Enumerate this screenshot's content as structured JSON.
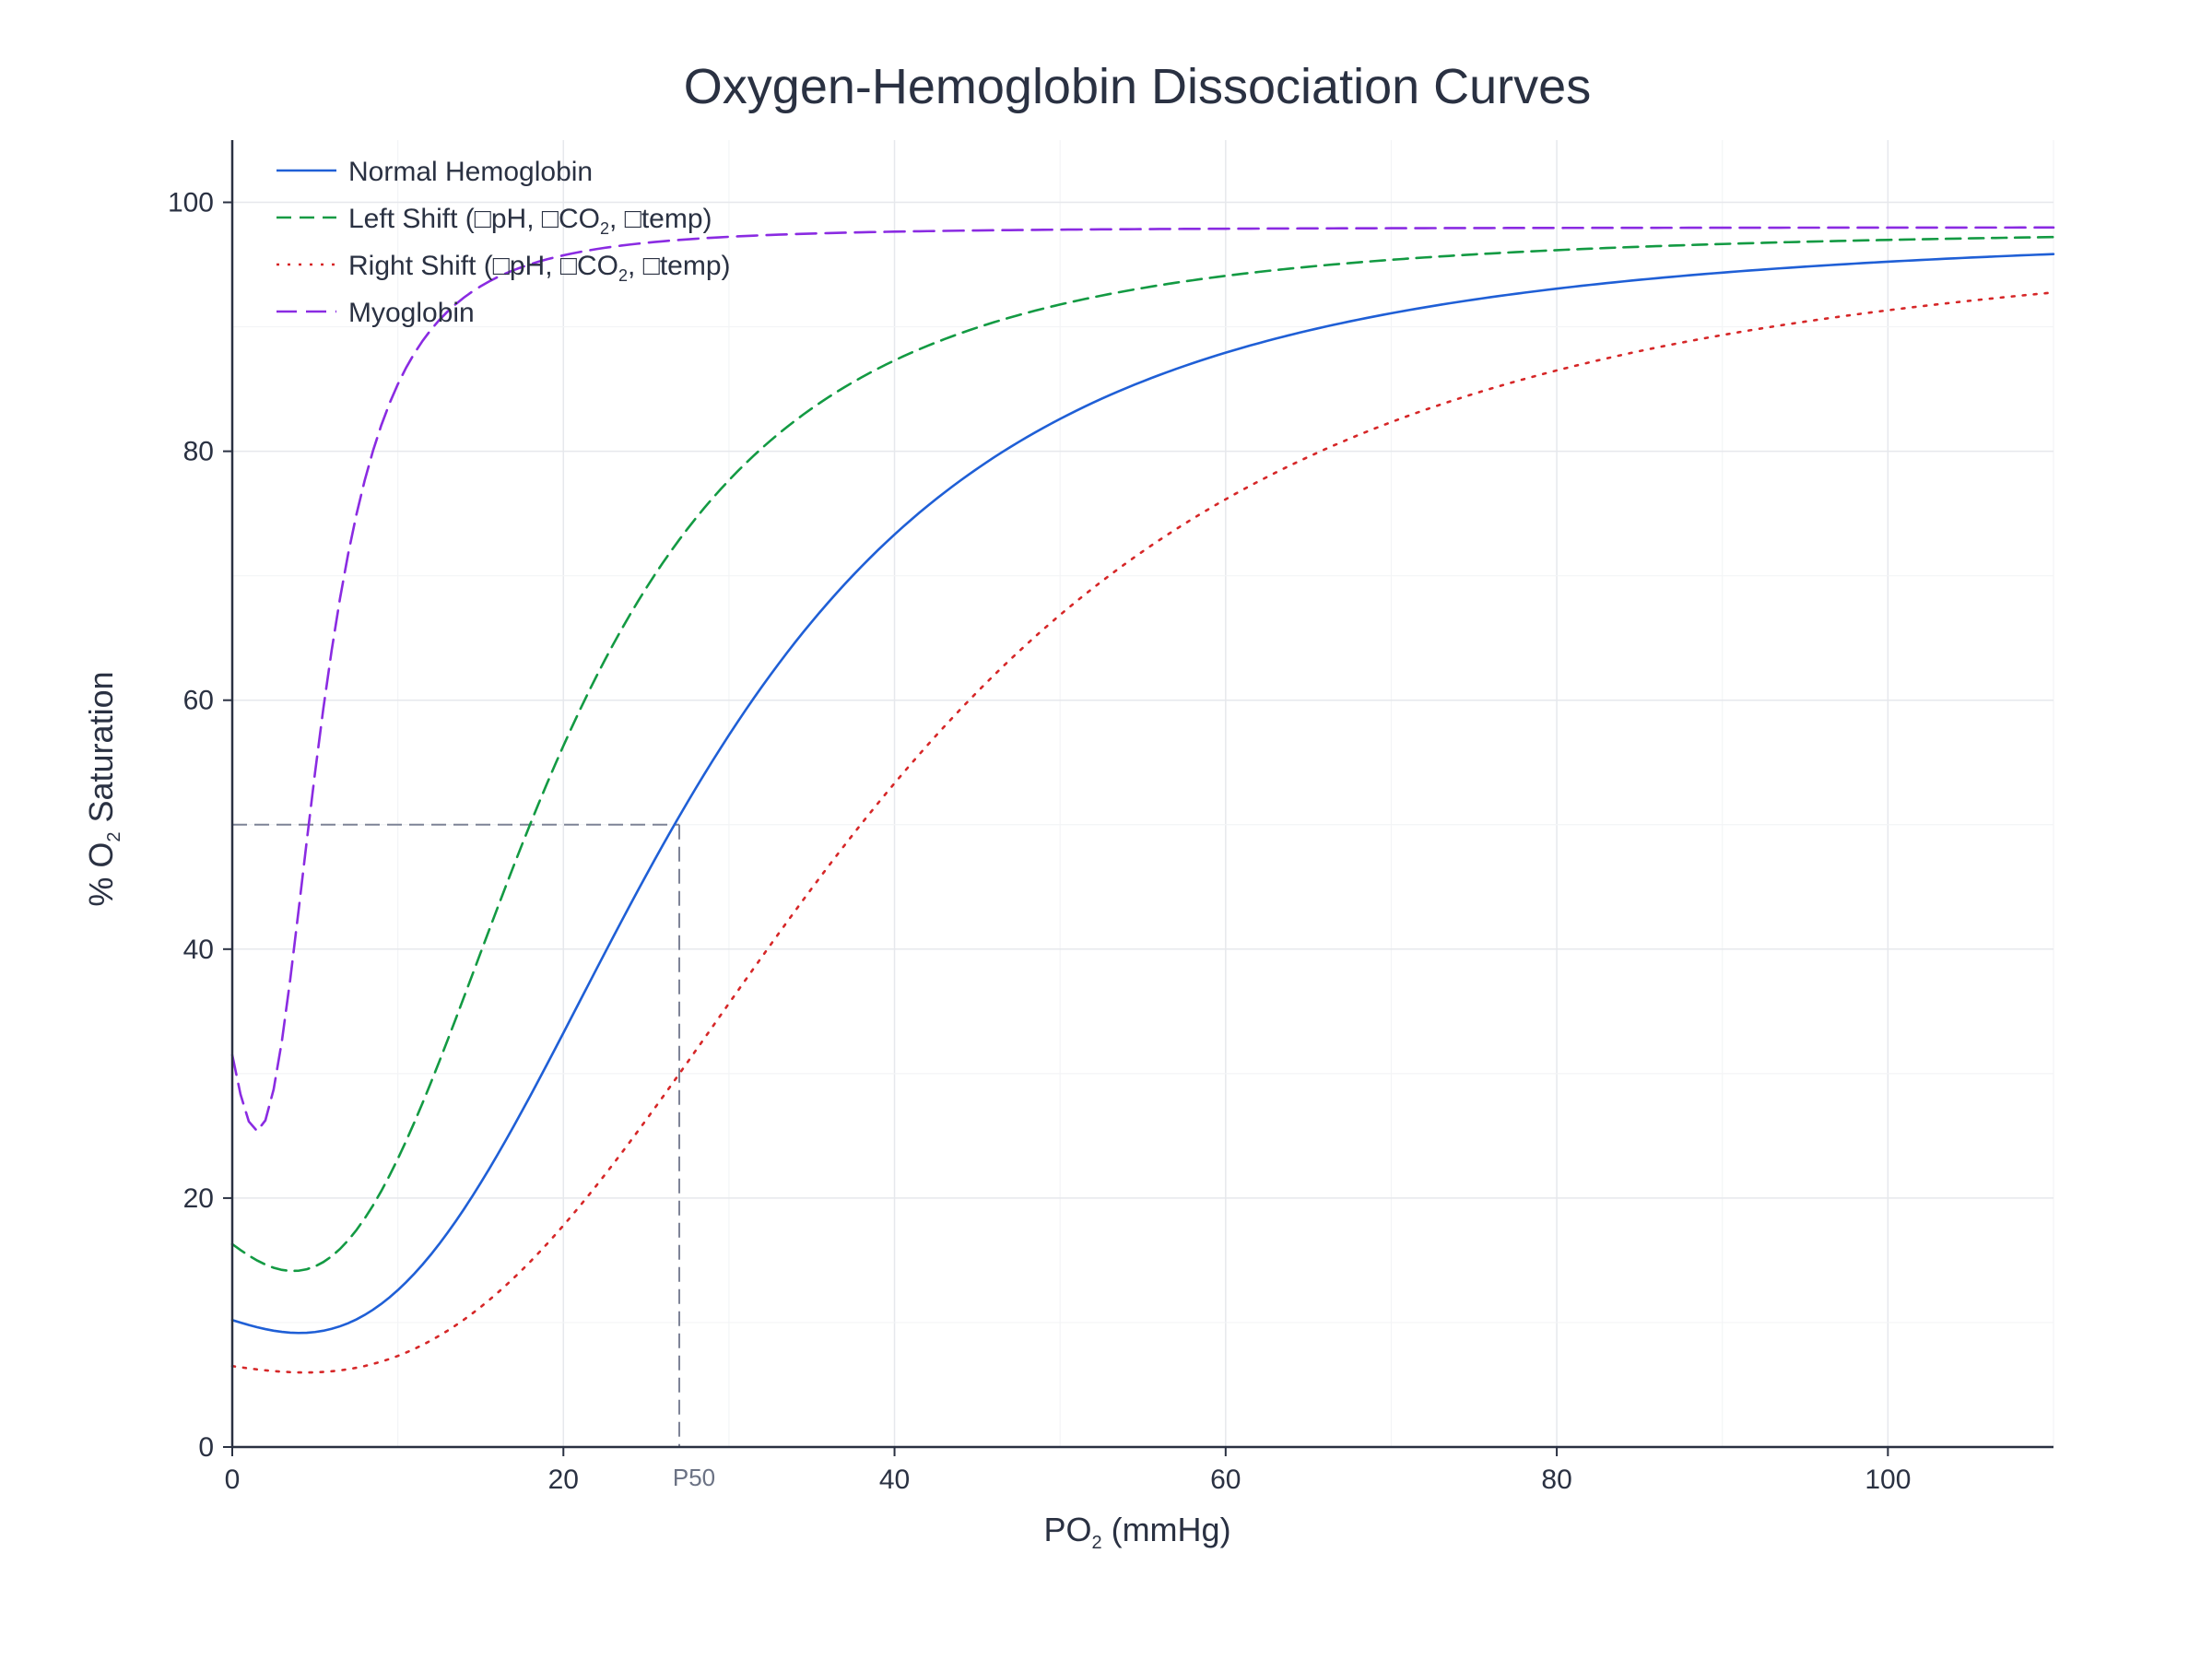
{
  "chart_data": {
    "type": "line",
    "title": "Oxygen-Hemoglobin Dissociation Curves",
    "xlabel": {
      "main": "PO",
      "sub": "2",
      "rest": " (mmHg)"
    },
    "ylabel": {
      "main": "% O",
      "sub": "2",
      "rest": " Saturation"
    },
    "xlim": [
      0,
      110
    ],
    "ylim": [
      0,
      105
    ],
    "xticks": [
      0,
      20,
      40,
      60,
      80,
      100
    ],
    "yticks": [
      0,
      20,
      40,
      60,
      80,
      100
    ],
    "grid": true,
    "legend_position": "top-left",
    "series": [
      {
        "name": {
          "a": "Normal Hemoglobin"
        },
        "color": "#1f5fd6",
        "dash": "solid",
        "params": {
          "p50": 27,
          "n": 2.7,
          "max": 98
        },
        "x": [
          0,
          2,
          5,
          10,
          15,
          20,
          25,
          27,
          30,
          35,
          40,
          45,
          50,
          55,
          60,
          65,
          70,
          80,
          90,
          100,
          110
        ],
        "y": [
          10.2,
          12,
          15,
          20.5,
          27.5,
          35.7,
          44.5,
          49,
          55,
          64.5,
          72.5,
          79.5,
          85,
          89,
          91.5,
          93.5,
          95,
          96.5,
          97.2,
          97.6,
          97.8
        ]
      },
      {
        "name": {
          "a": "Left Shift (",
          "b": "pH, ",
          "c": "CO",
          "d": "2",
          "e": ", ",
          "f": "temp)"
        },
        "color": "#139a43",
        "dash": "long-dash",
        "params": {
          "p50": 18.5,
          "n": 2.7,
          "max": 98
        },
        "x": [
          0,
          2,
          5,
          10,
          15,
          18.5,
          20,
          25,
          27,
          30,
          35,
          40,
          45,
          50,
          55,
          60,
          70,
          80,
          90,
          100,
          110
        ],
        "y": [
          16.3,
          19,
          23.5,
          32,
          42.5,
          49.5,
          53.5,
          64,
          68,
          73.5,
          80.5,
          85.5,
          89.5,
          92.5,
          94.5,
          95.7,
          97,
          97.5,
          97.8,
          97.9,
          98
        ]
      },
      {
        "name": {
          "a": "Right Shift (",
          "b": "pH, ",
          "c": "CO",
          "d": "2",
          "e": ", ",
          "f": "temp)"
        },
        "color": "#d62728",
        "dash": "dot",
        "params": {
          "p50": 38,
          "n": 2.7,
          "max": 98
        },
        "x": [
          0,
          5,
          10,
          15,
          20,
          25,
          27,
          30,
          35,
          40,
          45,
          50,
          55,
          60,
          65,
          70,
          80,
          90,
          100,
          110
        ],
        "y": [
          6.5,
          8.8,
          12,
          16.3,
          21.5,
          27.8,
          31,
          36,
          45.5,
          53,
          61,
          68.5,
          75,
          80.5,
          85,
          88.5,
          93,
          95.3,
          96.6,
          97.4
        ]
      },
      {
        "name": {
          "a": "Myoglobin"
        },
        "color": "#8a2be2",
        "dash": "dash",
        "params": {
          "p50": 5,
          "n": 2.7,
          "max": 98
        },
        "x": [
          0,
          2,
          4,
          5,
          6,
          8,
          10,
          12,
          14,
          16,
          18,
          20,
          22,
          25,
          27,
          30,
          35,
          40,
          50,
          60,
          80,
          100,
          110
        ],
        "y": [
          31.5,
          38.5,
          46,
          50,
          54,
          63,
          70.5,
          76.5,
          81.5,
          85,
          88,
          90,
          92,
          94,
          95,
          96,
          97,
          97.5,
          97.8,
          97.9,
          98,
          98,
          98
        ]
      }
    ],
    "annotations": [
      {
        "type": "p50-guide",
        "x": 27,
        "y": 50,
        "label": "P50"
      }
    ]
  }
}
